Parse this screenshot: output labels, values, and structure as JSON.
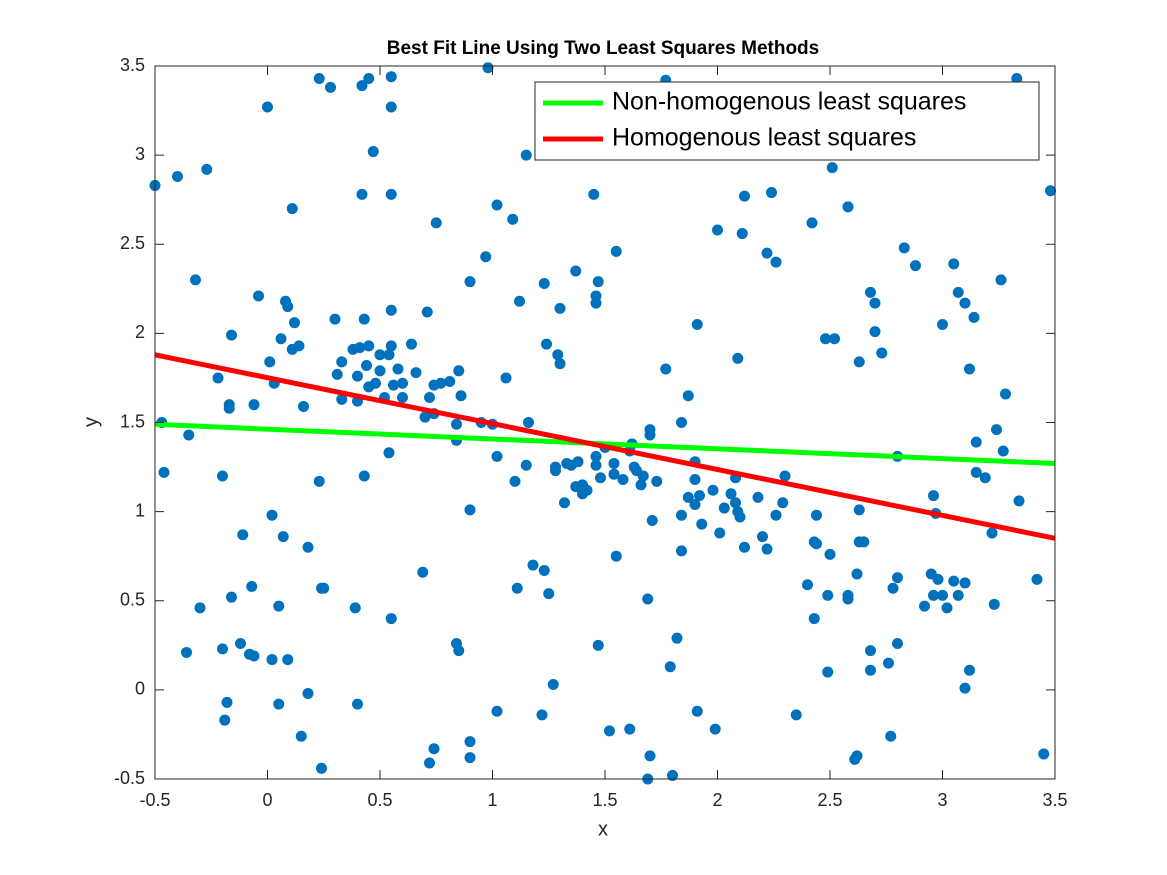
{
  "chart_data": {
    "type": "scatter",
    "title": "Best Fit Line Using Two Least Squares Methods",
    "x_label": "x",
    "y_label": "y",
    "xlim": [
      -0.5,
      3.5
    ],
    "ylim": [
      -0.5,
      3.5
    ],
    "xticks": [
      -0.5,
      0,
      0.5,
      1,
      1.5,
      2,
      2.5,
      3,
      3.5
    ],
    "yticks": [
      -0.5,
      0,
      0.5,
      1,
      1.5,
      2,
      2.5,
      3,
      3.5
    ],
    "legend": "northeast",
    "series": [
      {
        "type": "scatter",
        "color": "#0072bd",
        "x": [
          -0.5,
          -0.4,
          -0.27,
          -0.32,
          -0.47,
          -0.46,
          -0.35,
          -0.36,
          -0.3,
          0.0,
          0.23,
          0.28,
          0.42,
          0.45,
          0.55,
          0.55,
          0.47,
          0.42,
          0.55,
          0.11,
          -0.04,
          0.08,
          0.09,
          0.06,
          0.12,
          0.11,
          0.14,
          0.3,
          0.33,
          0.31,
          0.38,
          0.41,
          0.45,
          0.44,
          0.5,
          0.54,
          0.55,
          0.58,
          0.6,
          0.56,
          0.48,
          0.45,
          0.4,
          0.4,
          0.33,
          0.5,
          0.52,
          0.6,
          0.64,
          0.66,
          0.55,
          0.43,
          0.01,
          0.03,
          -0.22,
          -0.16,
          -0.17,
          -0.17,
          -0.06,
          0.16,
          0.54,
          0.43,
          0.23,
          0.71,
          0.75,
          0.9,
          0.97,
          1.02,
          1.09,
          1.12,
          1.15,
          0.98,
          0.72,
          0.74,
          0.77,
          0.81,
          0.85,
          0.74,
          0.84,
          0.86,
          0.84,
          0.95,
          1.0,
          1.02,
          1.06,
          1.16,
          1.15,
          1.1,
          0.7,
          0.9,
          -0.2,
          -0.11,
          0.02,
          0.07,
          0.18,
          0.25,
          0.24,
          0.05,
          -0.07,
          -0.16,
          -0.2,
          -0.12,
          -0.08,
          -0.06,
          0.02,
          0.09,
          0.18,
          0.05,
          -0.18,
          -0.19,
          0.15,
          0.24,
          0.4,
          0.39,
          0.55,
          0.69,
          0.72,
          0.74,
          0.84,
          0.85,
          0.9,
          0.9,
          1.02,
          1.11,
          1.18,
          1.23,
          1.25,
          1.27,
          1.22,
          1.24,
          1.29,
          1.3,
          1.3,
          1.23,
          1.37,
          1.45,
          1.47,
          1.46,
          1.46,
          1.55,
          1.77,
          1.77,
          1.91,
          1.87,
          1.84,
          1.7,
          1.7,
          1.62,
          1.61,
          1.54,
          1.46,
          1.46,
          1.5,
          1.38,
          1.33,
          1.28,
          1.28,
          1.35,
          1.4,
          1.42,
          1.37,
          1.32,
          1.4,
          1.48,
          1.54,
          1.58,
          1.63,
          1.67,
          1.66,
          1.64,
          1.73,
          1.71,
          1.84,
          1.84,
          1.9,
          1.9,
          1.87,
          1.9,
          1.92,
          1.93,
          1.98,
          2.01,
          2.03,
          2.06,
          2.08,
          2.09,
          2.1,
          2.08,
          2.12,
          2.18,
          2.2,
          2.22,
          2.26,
          2.29,
          2.3,
          1.55,
          1.69,
          1.47,
          1.52,
          1.61,
          1.7,
          1.69,
          1.8,
          1.82,
          1.79,
          1.91,
          1.99,
          2.0,
          2.11,
          2.12,
          2.09,
          2.22,
          2.26,
          2.24,
          2.42,
          2.48,
          2.52,
          2.51,
          2.58,
          2.63,
          2.68,
          2.7,
          2.7,
          2.73,
          2.8,
          2.83,
          2.88,
          2.96,
          2.97,
          3.0,
          3.05,
          3.07,
          3.1,
          3.12,
          3.14,
          3.15,
          3.15,
          3.19,
          3.22,
          3.24,
          3.26,
          3.27,
          3.28,
          3.34,
          3.33,
          3.48,
          3.42,
          3.45,
          3.23,
          3.12,
          3.1,
          3.1,
          3.07,
          3.05,
          3.02,
          3.0,
          2.98,
          2.95,
          2.96,
          2.92,
          2.8,
          2.78,
          2.8,
          2.76,
          2.77,
          2.68,
          2.68,
          2.63,
          2.65,
          2.62,
          2.63,
          2.58,
          2.58,
          2.62,
          2.61,
          2.5,
          2.49,
          2.49,
          2.44,
          2.43,
          2.44,
          2.4,
          2.43,
          2.35
        ],
        "values": [
          2.83,
          2.88,
          2.92,
          2.3,
          1.5,
          1.22,
          1.43,
          0.21,
          0.46,
          3.27,
          3.43,
          3.38,
          3.39,
          3.43,
          3.44,
          3.27,
          3.02,
          2.78,
          2.78,
          2.7,
          2.21,
          2.18,
          2.15,
          1.97,
          2.06,
          1.91,
          1.93,
          2.08,
          1.84,
          1.77,
          1.91,
          1.92,
          1.93,
          1.82,
          1.88,
          1.88,
          1.93,
          1.8,
          1.72,
          1.71,
          1.72,
          1.7,
          1.76,
          1.62,
          1.63,
          1.79,
          1.64,
          1.64,
          1.94,
          1.78,
          2.13,
          2.08,
          1.84,
          1.72,
          1.75,
          1.99,
          1.6,
          1.58,
          1.6,
          1.59,
          1.33,
          1.2,
          1.17,
          2.12,
          2.62,
          2.29,
          2.43,
          2.72,
          2.64,
          2.18,
          3.0,
          3.49,
          1.64,
          1.71,
          1.72,
          1.73,
          1.79,
          1.55,
          1.49,
          1.65,
          1.4,
          1.5,
          1.49,
          1.31,
          1.75,
          1.5,
          1.26,
          1.17,
          1.53,
          1.01,
          1.2,
          0.87,
          0.98,
          0.86,
          0.8,
          0.57,
          0.57,
          0.47,
          0.58,
          0.52,
          0.23,
          0.26,
          0.2,
          0.19,
          0.17,
          0.17,
          -0.02,
          -0.08,
          -0.07,
          -0.17,
          -0.26,
          -0.44,
          -0.08,
          0.46,
          0.4,
          0.66,
          -0.41,
          -0.33,
          0.26,
          0.22,
          -0.29,
          -0.38,
          -0.12,
          0.57,
          0.7,
          0.67,
          0.54,
          0.03,
          -0.14,
          1.94,
          1.88,
          1.83,
          2.14,
          2.28,
          2.35,
          2.78,
          2.29,
          2.21,
          2.17,
          2.46,
          3.42,
          1.8,
          2.05,
          1.65,
          1.5,
          1.46,
          1.43,
          1.38,
          1.34,
          1.27,
          1.26,
          1.31,
          1.36,
          1.28,
          1.27,
          1.25,
          1.23,
          1.26,
          1.15,
          1.12,
          1.14,
          1.05,
          1.1,
          1.19,
          1.21,
          1.18,
          1.25,
          1.2,
          1.15,
          1.23,
          1.17,
          0.95,
          0.98,
          0.78,
          1.28,
          1.18,
          1.08,
          1.04,
          1.09,
          0.93,
          1.12,
          0.88,
          1.02,
          1.1,
          1.05,
          1.0,
          0.97,
          1.19,
          0.8,
          1.08,
          0.86,
          0.79,
          0.98,
          1.05,
          1.2,
          0.75,
          0.51,
          0.25,
          -0.23,
          -0.22,
          -0.37,
          -0.5,
          -0.48,
          0.29,
          0.13,
          -0.12,
          -0.22,
          2.58,
          2.56,
          2.77,
          1.86,
          2.45,
          2.4,
          2.79,
          2.62,
          1.97,
          1.97,
          2.93,
          2.71,
          1.84,
          2.23,
          2.17,
          2.01,
          1.89,
          1.31,
          2.48,
          2.38,
          1.09,
          0.99,
          2.05,
          2.39,
          2.23,
          2.17,
          1.8,
          2.09,
          1.39,
          1.22,
          1.19,
          0.88,
          1.46,
          2.3,
          1.34,
          1.66,
          1.06,
          3.43,
          2.8,
          0.62,
          -0.36,
          0.48,
          0.11,
          0.01,
          0.6,
          0.53,
          0.61,
          0.46,
          0.53,
          0.62,
          0.65,
          0.53,
          0.47,
          0.63,
          0.57,
          0.26,
          0.15,
          -0.26,
          0.22,
          0.11,
          0.83,
          0.83,
          0.65,
          1.01,
          0.53,
          0.51,
          -0.37,
          -0.39,
          0.76,
          0.53,
          0.1,
          0.82,
          0.83,
          0.98,
          0.59,
          0.4,
          -0.14
        ]
      },
      {
        "type": "line",
        "name": "Non-homogenous least squares",
        "color": "#00ff00",
        "x": [
          -0.5,
          3.5
        ],
        "values": [
          1.49,
          1.27
        ]
      },
      {
        "type": "line",
        "name": "Homogenous least squares",
        "color": "#ff0000",
        "x": [
          -0.5,
          3.5
        ],
        "values": [
          1.88,
          0.85
        ]
      }
    ]
  }
}
